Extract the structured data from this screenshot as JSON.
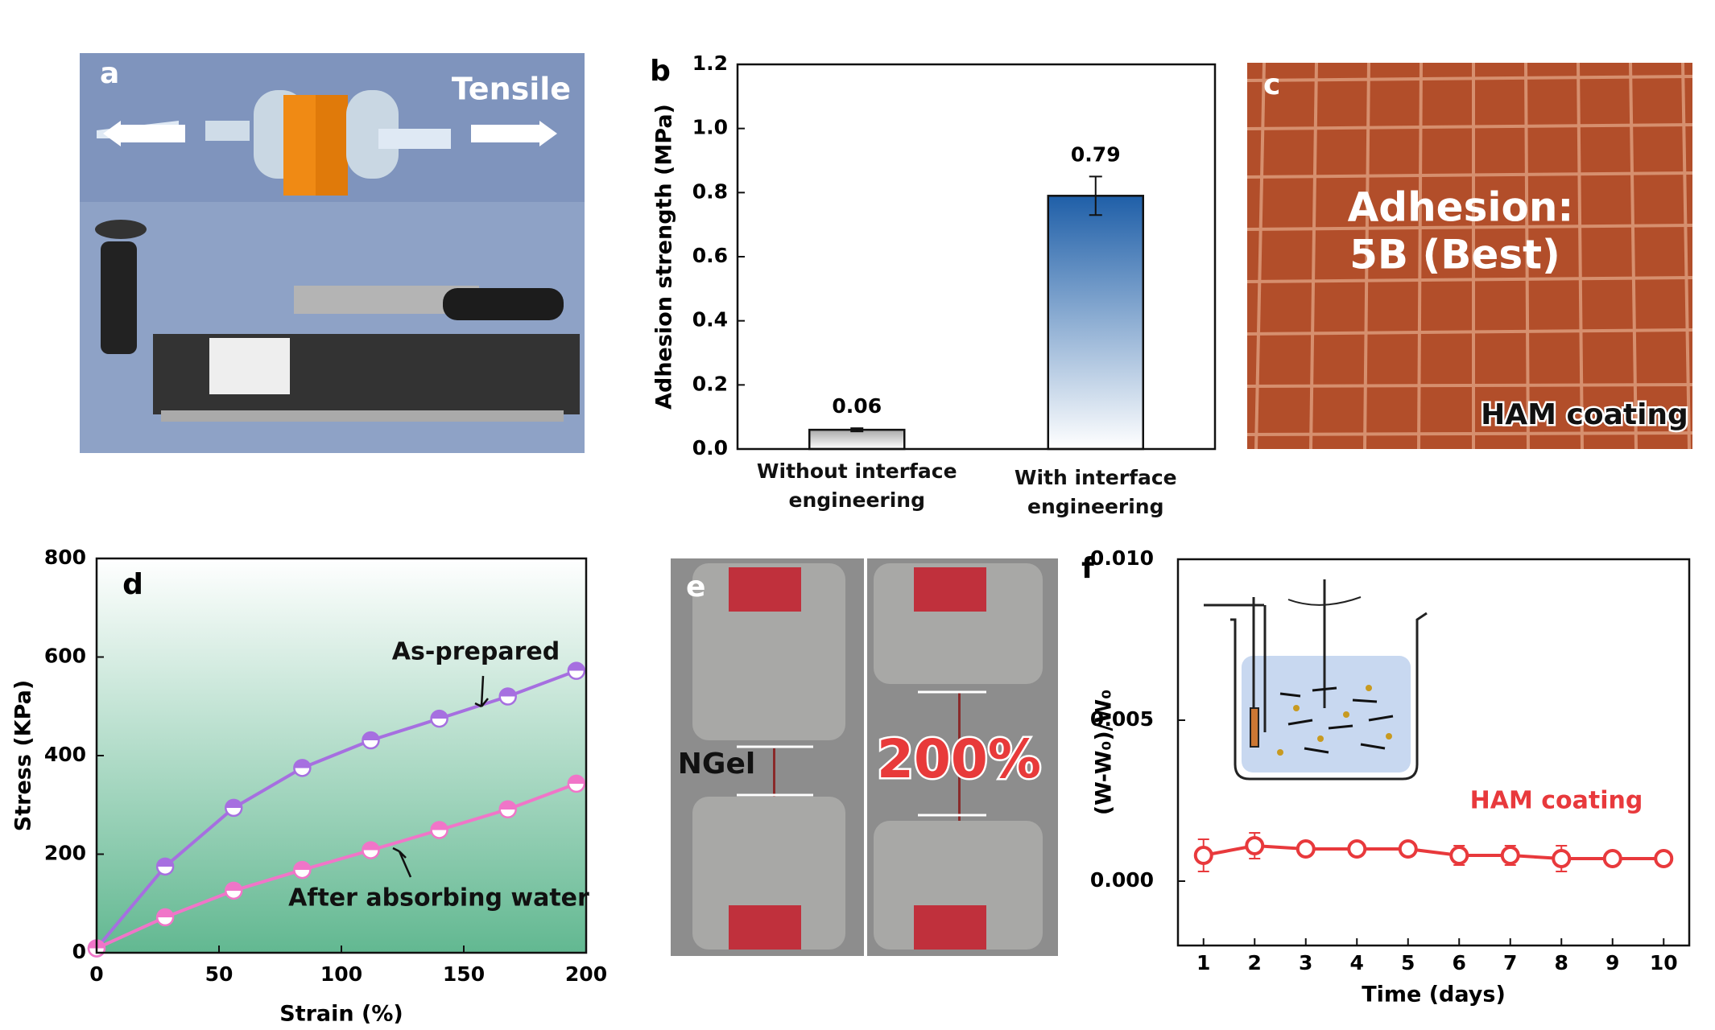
{
  "photos": {
    "a": {
      "label": "a",
      "text": "Tensile"
    },
    "c": {
      "label": "c",
      "lines": [
        "Adhesion:",
        "5B (Best)"
      ],
      "caption": "HAM coating"
    },
    "e": {
      "label": "e",
      "sample": "NGel",
      "strain": "200%"
    }
  },
  "chart_data": [
    {
      "type": "bar",
      "label": "b",
      "ylabel": "Adhesion strength (MPa)",
      "categories": [
        "Without interface engineering",
        "With interface engineering"
      ],
      "values": [
        0.06,
        0.79
      ],
      "errors": [
        0.005,
        0.06
      ],
      "colors": [
        "#a9a9a9",
        "#1f5fa8"
      ],
      "ylim": [
        0,
        1.2
      ],
      "yticks": [
        {
          "value": 0,
          "label": "0.0"
        },
        0.2,
        0.4,
        0.6,
        0.8,
        {
          "value": 1,
          "label": "1.0"
        },
        1.2
      ]
    },
    {
      "type": "line",
      "label": "d",
      "xlabel": "Strain (%)",
      "ylabel": "Stress (KPa)",
      "x": [
        0,
        28,
        56,
        84,
        112,
        140,
        168,
        196
      ],
      "series": [
        {
          "name": "As-prepared",
          "color": "#a66fe0",
          "values": [
            9,
            175,
            294,
            375,
            431,
            475,
            520,
            572
          ]
        },
        {
          "name": "After absorbing water",
          "color": "#f075c8",
          "values": [
            9,
            72,
            126,
            168,
            208,
            249,
            291,
            343
          ]
        }
      ],
      "xlim": [
        0,
        200
      ],
      "xticks": [
        0,
        50,
        100,
        150,
        200
      ],
      "ylim": [
        0,
        800
      ],
      "yticks": [
        0,
        200,
        400,
        600,
        800
      ]
    },
    {
      "type": "line",
      "label": "f",
      "xlabel": "Time (days)",
      "ylabel": "(W-W₀)/W₀",
      "x": [
        1,
        2,
        3,
        4,
        5,
        6,
        7,
        8,
        9,
        10
      ],
      "series": [
        {
          "name": "HAM coating",
          "color": "#e8393c",
          "values": [
            0.0008,
            0.0011,
            0.001,
            0.001,
            0.001,
            0.0008,
            0.0008,
            0.0007,
            0.0007,
            0.0007
          ],
          "errors": [
            0.0005,
            0.0004,
            0.0001,
            0.0001,
            0.0001,
            0.0003,
            0.0003,
            0.0004,
            0.0001,
            0.0001
          ]
        }
      ],
      "xlim": [
        0.5,
        10.5
      ],
      "xticks": [
        1,
        2,
        3,
        4,
        5,
        6,
        7,
        8,
        9,
        10
      ],
      "ylim": [
        -0.002,
        0.01
      ],
      "yticks": [
        {
          "value": 0,
          "label": "0.000"
        },
        {
          "value": 0.005,
          "label": "0.005"
        },
        {
          "value": 0.01,
          "label": "0.010"
        }
      ]
    }
  ]
}
